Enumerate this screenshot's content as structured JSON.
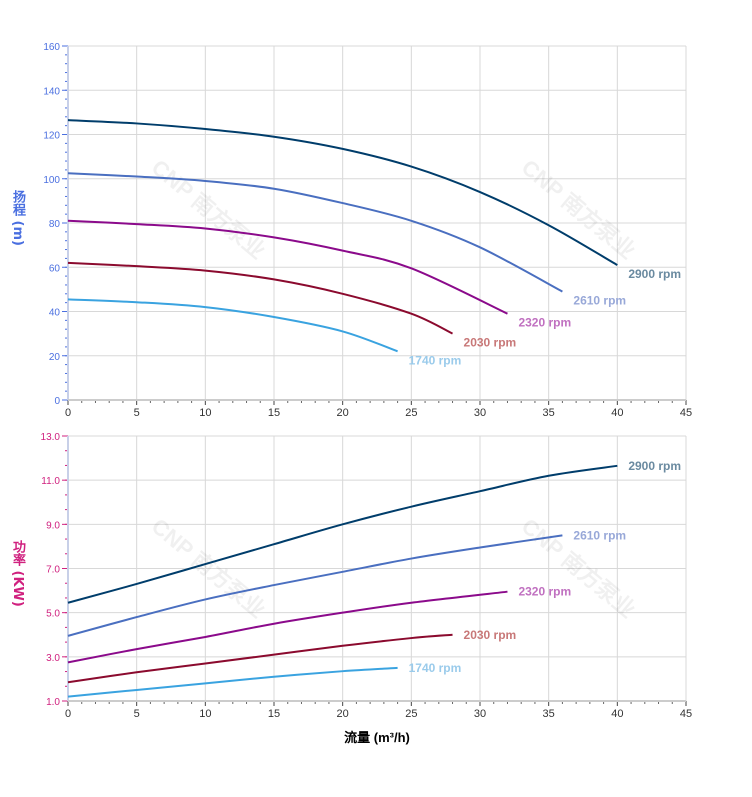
{
  "chart_data": [
    {
      "type": "line",
      "ylabel": "扬程 (m)",
      "xlim": [
        0,
        45
      ],
      "ylim": [
        0,
        160
      ],
      "xticks": [
        0,
        5,
        10,
        15,
        20,
        25,
        30,
        35,
        40,
        45
      ],
      "yticks": [
        0,
        20,
        40,
        60,
        80,
        100,
        120,
        140,
        160
      ],
      "grid": true,
      "series": [
        {
          "name": "2900 rpm",
          "color": "#003d6b",
          "label_color": "#6a8aa0",
          "x": [
            0,
            5,
            10,
            15,
            20,
            25,
            30,
            35,
            40
          ],
          "y": [
            126.5,
            125,
            122.5,
            119,
            113.5,
            105.5,
            94,
            79,
            61
          ]
        },
        {
          "name": "2610 rpm",
          "color": "#4a6fc0",
          "label_color": "#98a8d8",
          "x": [
            0,
            5,
            10,
            15,
            20,
            25,
            30,
            36
          ],
          "y": [
            102.5,
            101,
            99,
            95.5,
            89,
            81,
            69,
            49
          ]
        },
        {
          "name": "2320 rpm",
          "color": "#8b0a8b",
          "label_color": "#c070c0",
          "x": [
            0,
            5,
            10,
            15,
            20,
            25,
            32
          ],
          "y": [
            81,
            79.5,
            77.5,
            73.5,
            67.5,
            59.5,
            39
          ]
        },
        {
          "name": "2030 rpm",
          "color": "#8b0a2e",
          "label_color": "#c87878",
          "x": [
            0,
            5,
            10,
            15,
            20,
            25,
            28
          ],
          "y": [
            62,
            60.5,
            58.5,
            54.5,
            48,
            39,
            30
          ]
        },
        {
          "name": "1740 rpm",
          "color": "#3aa3e0",
          "label_color": "#9acbeb",
          "x": [
            0,
            5,
            10,
            15,
            20,
            24
          ],
          "y": [
            45.5,
            44.2,
            42,
            37.5,
            31,
            22
          ]
        }
      ]
    },
    {
      "type": "line",
      "xlabel": "流量 (m³/h)",
      "ylabel": "功率 (KW)",
      "xlim": [
        0,
        45
      ],
      "ylim": [
        1.0,
        13.0
      ],
      "xticks": [
        0,
        5,
        10,
        15,
        20,
        25,
        30,
        35,
        40,
        45
      ],
      "yticks": [
        "1.0",
        "3.0",
        "5.0",
        "7.0",
        "9.0",
        "11.0",
        "13.0"
      ],
      "grid": true,
      "series": [
        {
          "name": "2900 rpm",
          "color": "#003d6b",
          "label_color": "#6a8aa0",
          "x": [
            0,
            5,
            10,
            15,
            20,
            25,
            30,
            35,
            40
          ],
          "y": [
            5.45,
            6.3,
            7.2,
            8.1,
            9.0,
            9.8,
            10.5,
            11.2,
            11.65
          ]
        },
        {
          "name": "2610 rpm",
          "color": "#4a6fc0",
          "label_color": "#98a8d8",
          "x": [
            0,
            5,
            10,
            15,
            20,
            25,
            30,
            36
          ],
          "y": [
            3.95,
            4.8,
            5.6,
            6.25,
            6.85,
            7.45,
            7.95,
            8.5
          ]
        },
        {
          "name": "2320 rpm",
          "color": "#8b0a8b",
          "label_color": "#c070c0",
          "x": [
            0,
            5,
            10,
            15,
            20,
            25,
            32
          ],
          "y": [
            2.75,
            3.35,
            3.9,
            4.5,
            5.0,
            5.45,
            5.95
          ]
        },
        {
          "name": "2030 rpm",
          "color": "#8b0a2e",
          "label_color": "#c87878",
          "x": [
            0,
            5,
            10,
            15,
            20,
            25,
            28
          ],
          "y": [
            1.85,
            2.3,
            2.7,
            3.1,
            3.5,
            3.85,
            4.0
          ]
        },
        {
          "name": "1740 rpm",
          "color": "#3aa3e0",
          "label_color": "#9acbeb",
          "x": [
            0,
            5,
            10,
            15,
            20,
            24
          ],
          "y": [
            1.2,
            1.5,
            1.8,
            2.1,
            2.35,
            2.5
          ]
        }
      ]
    }
  ],
  "axis_colors": {
    "head": "#4a6fe0",
    "power": "#d0217f"
  }
}
